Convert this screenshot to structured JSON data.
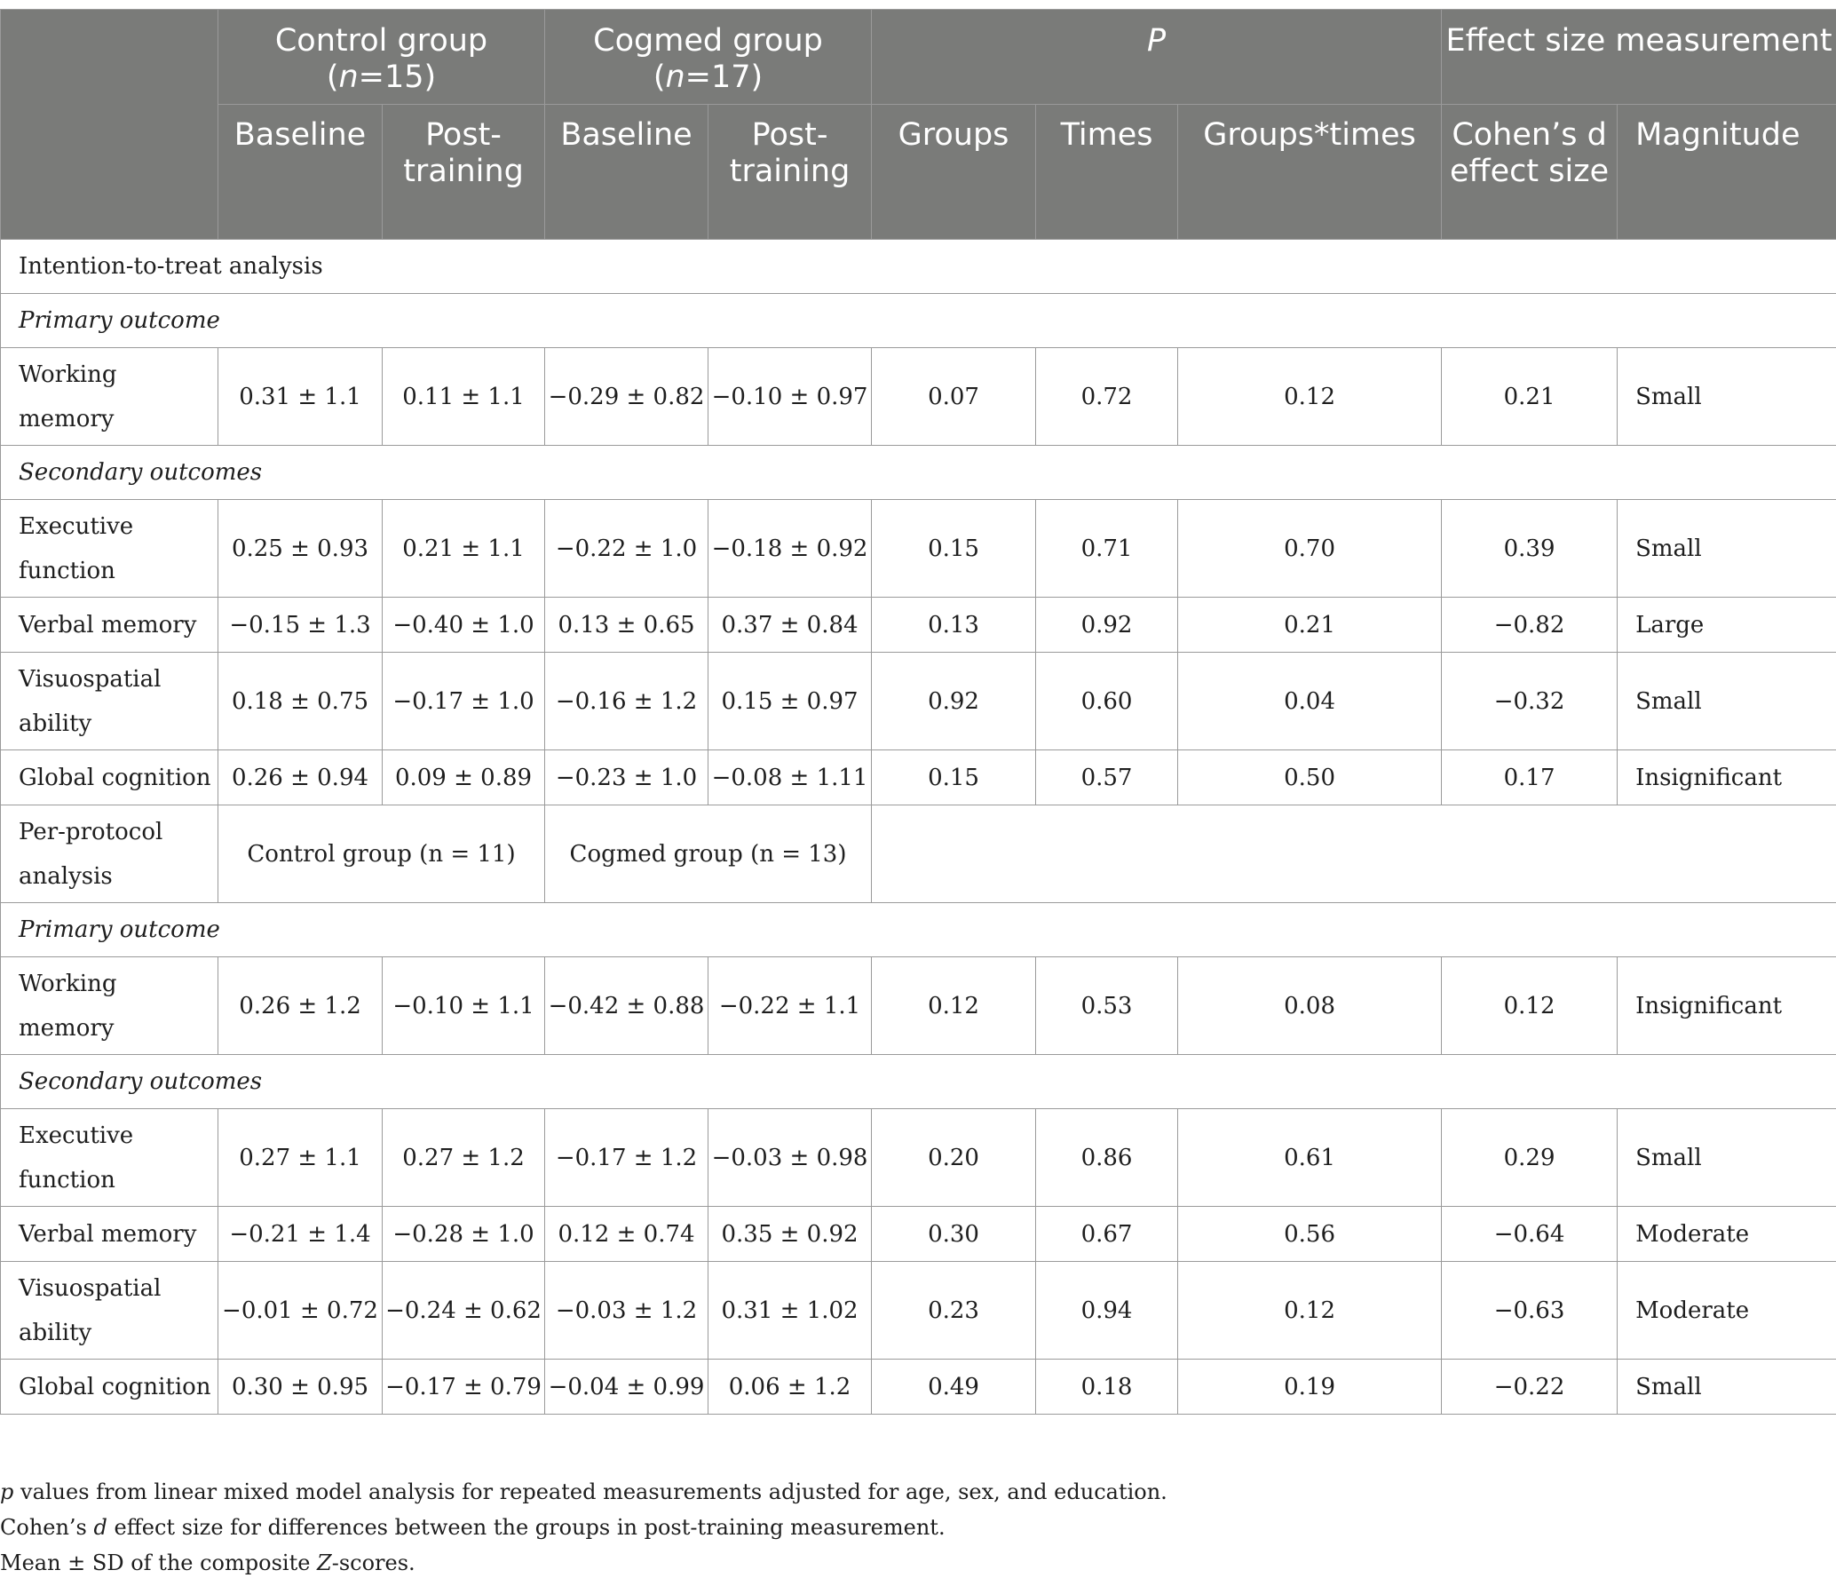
{
  "header": {
    "group_row": [
      {
        "id": "control",
        "text": "Control group",
        "n_label": "n",
        "n_value": "=15"
      },
      {
        "id": "cogmed",
        "text": "Cogmed group",
        "n_label": "n",
        "n_value": "=17"
      },
      {
        "id": "p",
        "text": "P"
      },
      {
        "id": "effect",
        "text": "Effect size measurement"
      }
    ],
    "sub_row": [
      "Baseline",
      "Post-training",
      "Baseline",
      "Post-training",
      "Groups",
      "Times",
      "Groups*times",
      "Cohen’s d effect size",
      "Magnitude"
    ]
  },
  "sections": {
    "itt": "Intention-to-treat analysis",
    "primary": "Primary outcome",
    "secondary": "Secondary outcomes",
    "pp_label": "Per-protocol analysis",
    "pp_control": "Control group (n = 11)",
    "pp_cogmed": "Cogmed group (n = 13)"
  },
  "itt_primary": [
    {
      "label": "Working memory",
      "cells": [
        "0.31 ± 1.1",
        "0.11 ± 1.1",
        "−0.29 ± 0.82",
        "−0.10 ± 0.97",
        "0.07",
        "0.72",
        "0.12",
        "0.21",
        "Small"
      ]
    }
  ],
  "itt_secondary": [
    {
      "label": "Executive function",
      "cells": [
        "0.25 ± 0.93",
        "0.21 ± 1.1",
        "−0.22 ± 1.0",
        "−0.18 ± 0.92",
        "0.15",
        "0.71",
        "0.70",
        "0.39",
        "Small"
      ]
    },
    {
      "label": "Verbal memory",
      "cells": [
        "−0.15 ± 1.3",
        "−0.40 ± 1.0",
        "0.13 ± 0.65",
        "0.37 ± 0.84",
        "0.13",
        "0.92",
        "0.21",
        "−0.82",
        "Large"
      ]
    },
    {
      "label": "Visuospatial ability",
      "cells": [
        "0.18 ± 0.75",
        "−0.17 ± 1.0",
        "−0.16 ± 1.2",
        "0.15 ± 0.97",
        "0.92",
        "0.60",
        "0.04",
        "−0.32",
        "Small"
      ]
    },
    {
      "label": "Global cognition",
      "cells": [
        "0.26 ± 0.94",
        "0.09 ± 0.89",
        "−0.23 ± 1.0",
        "−0.08 ± 1.11",
        "0.15",
        "0.57",
        "0.50",
        "0.17",
        "Insignificant"
      ]
    }
  ],
  "pp_primary": [
    {
      "label": "Working memory",
      "cells": [
        "0.26 ± 1.2",
        "−0.10 ± 1.1",
        "−0.42 ± 0.88",
        "−0.22 ± 1.1",
        "0.12",
        "0.53",
        "0.08",
        "0.12",
        "Insignificant"
      ]
    }
  ],
  "pp_secondary": [
    {
      "label": "Executive function",
      "cells": [
        "0.27 ± 1.1",
        "0.27 ± 1.2",
        "−0.17 ± 1.2",
        "−0.03 ± 0.98",
        "0.20",
        "0.86",
        "0.61",
        "0.29",
        "Small"
      ]
    },
    {
      "label": "Verbal memory",
      "cells": [
        "−0.21 ± 1.4",
        "−0.28 ± 1.0",
        "0.12 ± 0.74",
        "0.35 ± 0.92",
        "0.30",
        "0.67",
        "0.56",
        "−0.64",
        "Moderate"
      ]
    },
    {
      "label": "Visuospatial ability",
      "cells": [
        "−0.01 ± 0.72",
        "−0.24 ± 0.62",
        "−0.03 ± 1.2",
        "0.31 ± 1.02",
        "0.23",
        "0.94",
        "0.12",
        "−0.63",
        "Moderate"
      ]
    },
    {
      "label": "Global cognition",
      "cells": [
        "0.30 ± 0.95",
        "−0.17 ± 0.79",
        "−0.04 ± 0.99",
        "0.06 ± 1.2",
        "0.49",
        "0.18",
        "0.19",
        "−0.22",
        "Small"
      ]
    }
  ],
  "footnotes": {
    "f1_italic": "p",
    "f1_rest": " values from linear mixed model analysis for repeated measurements adjusted for age, sex, and education.",
    "f2_a": "Cohen’s ",
    "f2_italic": "d",
    "f2_b": " effect size for differences between the groups in post-training measurement.",
    "f3_a": "Mean ± SD of the composite ",
    "f3_italic": "Z",
    "f3_b": "-scores."
  }
}
